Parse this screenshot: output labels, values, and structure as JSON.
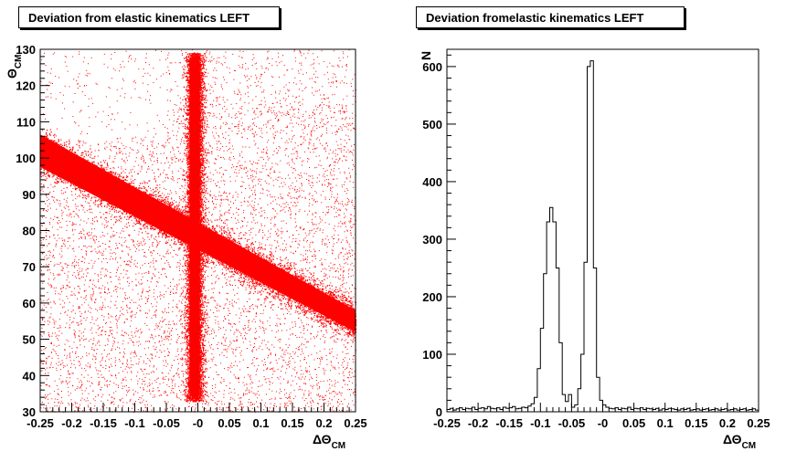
{
  "left": {
    "title": "Deviation from elastic kinematics LEFT"
  },
  "right": {
    "title": "Deviation fromelastic kinematics LEFT"
  },
  "chart_data": [
    {
      "type": "scatter",
      "title": "Deviation from elastic kinematics LEFT",
      "xlabel_prefix": "ΔΘ",
      "xlabel_sub": "CM",
      "ylabel_prefix": "Θ",
      "ylabel_sub": "CM",
      "xlim": [
        -0.25,
        0.25
      ],
      "ylim": [
        30,
        130
      ],
      "x_ticks": [
        "-0.25",
        "-0.2",
        "-0.15",
        "-0.1",
        "-0.05",
        "-0",
        "0.05",
        "0.1",
        "0.15",
        "0.2",
        "0.25"
      ],
      "x_tick_values": [
        -0.25,
        -0.2,
        -0.15,
        -0.1,
        -0.05,
        0,
        0.05,
        0.1,
        0.15,
        0.2,
        0.25
      ],
      "y_ticks": [
        "30",
        "40",
        "50",
        "60",
        "70",
        "80",
        "90",
        "100",
        "110",
        "120",
        "130"
      ],
      "y_tick_values": [
        30,
        40,
        50,
        60,
        70,
        80,
        90,
        100,
        110,
        120,
        130
      ],
      "marker_color": "#ff0000",
      "bands": [
        {
          "name": "",
          "x_center": -0.005,
          "x_width": 0.015,
          "y_range": [
            33,
            129
          ]
        },
        {
          "name": "",
          "line_points": [
            [
              -0.25,
              102
            ],
            [
              0.25,
              55
            ]
          ],
          "width": 5
        }
      ],
      "background_density": "diffuse uniform scatter"
    },
    {
      "type": "histogram",
      "title": "Deviation fromelastic kinematics LEFT",
      "xlabel_prefix": "ΔΘ",
      "xlabel_sub": "CM",
      "ylabel": "N",
      "xlim": [
        -0.25,
        0.25
      ],
      "ylim": [
        0,
        630
      ],
      "x_ticks": [
        "-0.25",
        "-0.2",
        "-0.15",
        "-0.1",
        "-0.05",
        "-0",
        "0.05",
        "0.1",
        "0.15",
        "0.2",
        "0.25"
      ],
      "x_tick_values": [
        -0.25,
        -0.2,
        -0.15,
        -0.1,
        -0.05,
        0,
        0.05,
        0.1,
        0.15,
        0.2,
        0.25
      ],
      "y_ticks": [
        "0",
        "100",
        "200",
        "300",
        "400",
        "500",
        "600"
      ],
      "y_tick_values": [
        0,
        100,
        200,
        300,
        400,
        500,
        600
      ],
      "bin_width": 0.005,
      "bin_start": -0.25,
      "values": [
        4,
        6,
        3,
        5,
        7,
        4,
        6,
        5,
        8,
        4,
        6,
        7,
        5,
        9,
        6,
        5,
        7,
        4,
        8,
        6,
        7,
        9,
        5,
        6,
        8,
        7,
        10,
        14,
        25,
        75,
        145,
        240,
        330,
        355,
        330,
        250,
        120,
        30,
        18,
        30,
        8,
        12,
        40,
        100,
        260,
        600,
        610,
        250,
        60,
        20,
        12,
        8,
        6,
        5,
        7,
        4,
        6,
        5,
        8,
        4,
        6,
        5,
        7,
        4,
        6,
        5,
        4,
        6,
        3,
        5,
        4,
        6,
        5,
        4,
        3,
        5,
        4,
        6,
        3,
        4,
        5,
        3,
        4,
        5,
        3,
        4,
        5,
        3,
        4,
        5,
        3,
        4,
        5,
        3,
        4,
        5,
        3,
        4,
        5,
        3
      ]
    }
  ]
}
